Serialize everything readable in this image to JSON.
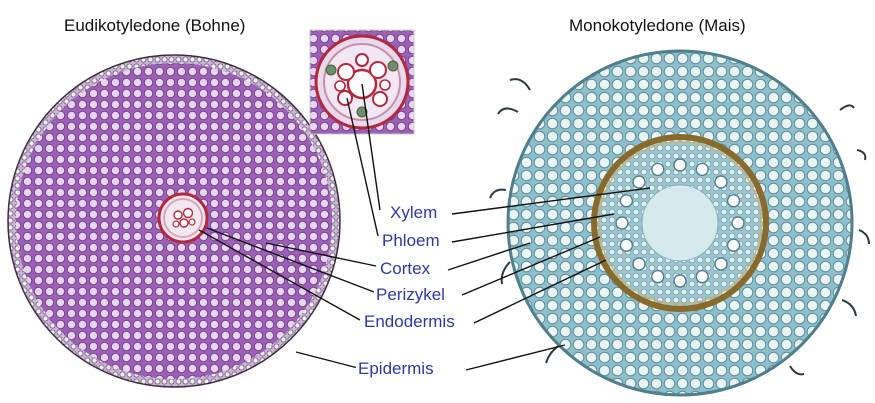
{
  "titles": {
    "left": "Eudikotyledone (Bohne)",
    "right": "Monokotyledone (Mais)"
  },
  "labels": {
    "xylem": "Xylem",
    "phloem": "Phloem",
    "cortex": "Cortex",
    "perizykel": "Perizykel",
    "endodermis": "Endodermis",
    "epidermis": "Epidermis"
  },
  "colors": {
    "label_text": "#2f37a8",
    "leader_line": "#111111",
    "dicot_cortex": "#9a62b4",
    "dicot_cell_wall": "#7b3f93",
    "dicot_endodermis": "#b5273a",
    "monocot_cortex": "#a9d0d8",
    "monocot_cell_wall": "#5c8e9d",
    "monocot_endodermis": "#8a6a2a",
    "monocot_stele": "#c4dfe4"
  }
}
